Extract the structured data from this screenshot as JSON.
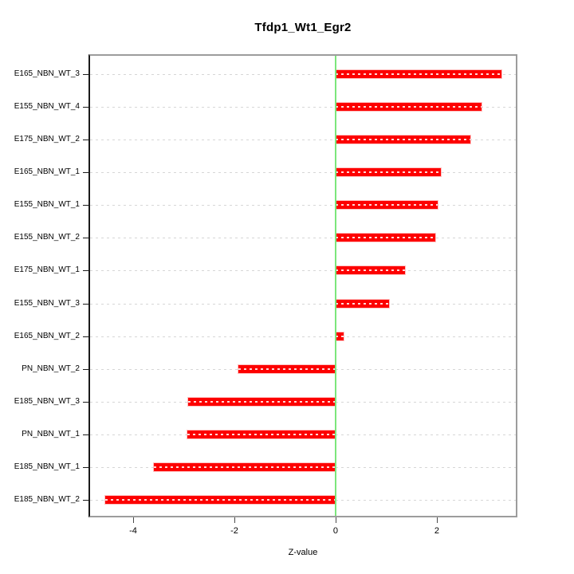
{
  "chart_data": {
    "type": "bar",
    "orientation": "horizontal",
    "title": "Tfdp1_Wt1_Egr2",
    "xlabel": "Z-value",
    "ylabel": "",
    "categories": [
      "E165_NBN_WT_3",
      "E155_NBN_WT_4",
      "E175_NBN_WT_2",
      "E165_NBN_WT_1",
      "E155_NBN_WT_1",
      "E155_NBN_WT_2",
      "E175_NBN_WT_1",
      "E155_NBN_WT_3",
      "E165_NBN_WT_2",
      "PN_NBN_WT_2",
      "E185_NBN_WT_3",
      "PN_NBN_WT_1",
      "E185_NBN_WT_1",
      "E185_NBN_WT_2"
    ],
    "values": [
      3.27,
      2.89,
      2.66,
      2.08,
      2.02,
      1.97,
      1.37,
      1.05,
      0.16,
      -1.92,
      -2.91,
      -2.93,
      -3.59,
      -4.55
    ],
    "xticks": [
      -4,
      -2,
      0,
      2
    ],
    "xlim": [
      -4.85,
      3.56
    ],
    "grid": "horizontal-dashed",
    "zero_reference_line": true,
    "legend": null,
    "colors": {
      "bar": "#fd0000",
      "bar_dash_overlay": "#ffffff",
      "zero_line": "#7ce67c",
      "gridline": "#d6d6d6",
      "box_border": "#9c9c9c",
      "y_axis_line": "#1a1a1a",
      "text": "#000000",
      "background": "#ffffff"
    }
  }
}
